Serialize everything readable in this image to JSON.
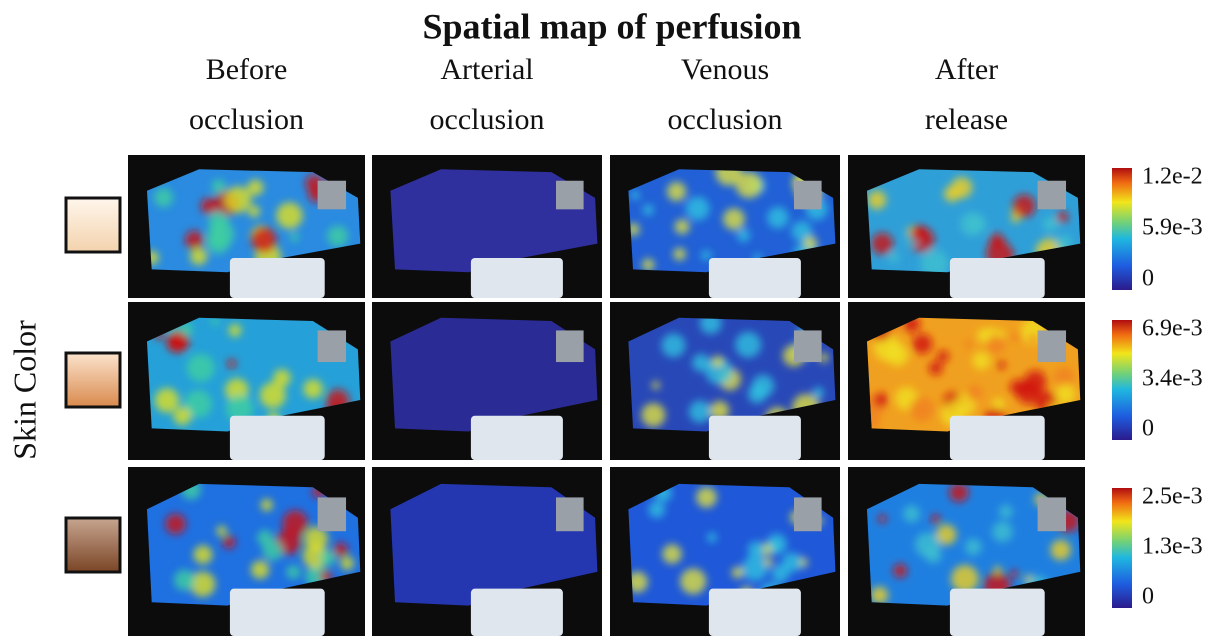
{
  "title": "Spatial map of perfusion",
  "columns": [
    [
      "Before",
      "occlusion"
    ],
    [
      "Arterial",
      "occlusion"
    ],
    [
      "Venous",
      "occlusion"
    ],
    [
      "After",
      "release"
    ]
  ],
  "row_axis_label": "Skin Color",
  "colorbars": [
    [
      "1.2e-2",
      "5.9e-3",
      "0"
    ],
    [
      "6.9e-3",
      "3.4e-3",
      "0"
    ],
    [
      "2.5e-3",
      "1.3e-3",
      "0"
    ]
  ]
}
